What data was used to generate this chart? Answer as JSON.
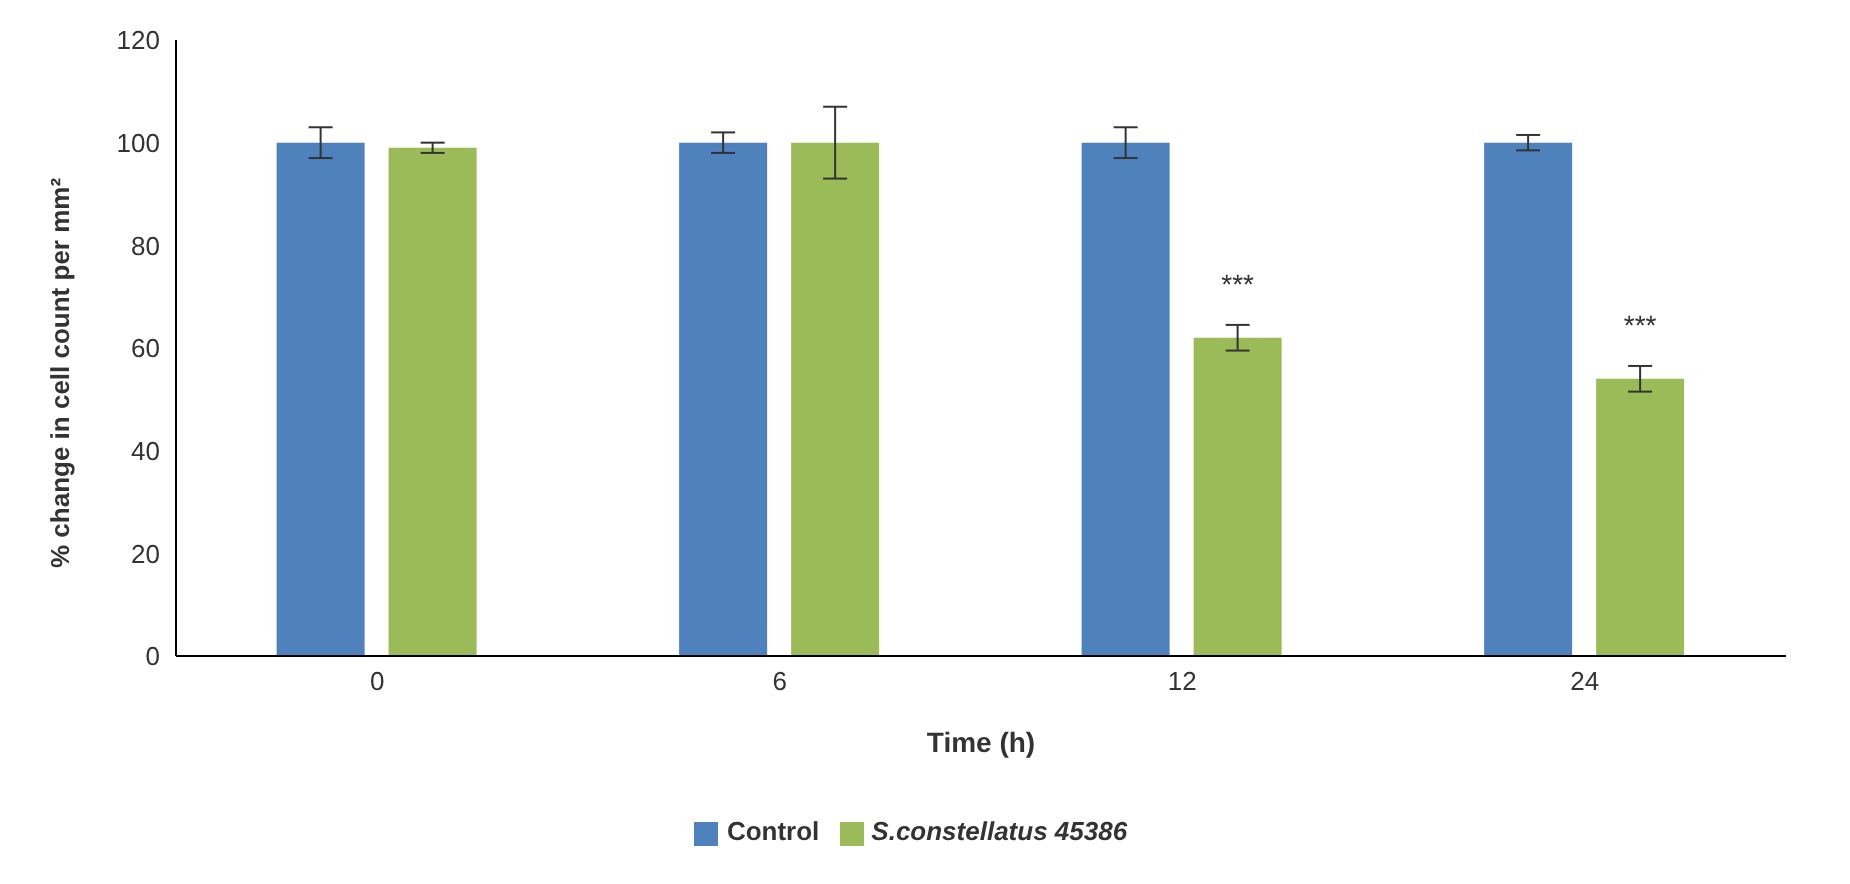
{
  "chart_data": {
    "type": "bar",
    "xlabel": "Time (h)",
    "ylabel": "% change in cell count per mm²",
    "categories": [
      "0",
      "6",
      "12",
      "24"
    ],
    "series": [
      {
        "name": "Control",
        "color": "#4f81bd",
        "values": [
          100,
          100,
          100,
          100
        ],
        "errors": [
          3,
          2,
          3,
          1.5
        ]
      },
      {
        "name": "S.constellatus 45386",
        "color": "#9bbb59",
        "values": [
          99,
          100,
          62,
          54
        ],
        "errors": [
          1,
          7,
          2.5,
          2.5
        ],
        "value_labels": [
          null,
          null,
          "***",
          "***"
        ]
      }
    ],
    "ylim": [
      0,
      120
    ],
    "yticks": [
      0,
      20,
      40,
      60,
      80,
      100,
      120
    ],
    "grid": false,
    "legend": "bottom"
  }
}
